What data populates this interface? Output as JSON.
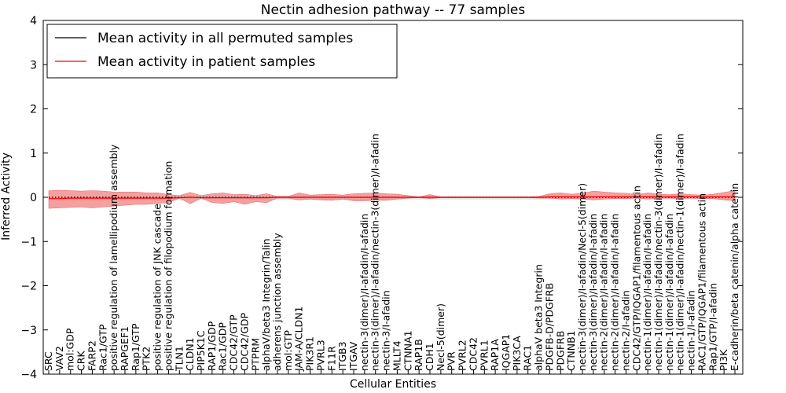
{
  "chart_data": {
    "type": "line",
    "title": "Nectin adhesion pathway -- 77 samples",
    "xlabel": "Cellular Entities",
    "ylabel": "Inferred Activity",
    "ylim": [
      -4,
      4
    ],
    "yticks": [
      -4,
      -3,
      -2,
      -1,
      0,
      1,
      2,
      3,
      4
    ],
    "ytick_labels": [
      "−4",
      "−3",
      "−2",
      "−1",
      "0",
      "1",
      "2",
      "3",
      "4"
    ],
    "grid": false,
    "legend_position": "top-left",
    "categories": [
      "SRC",
      "VAV2",
      "mol:GDP",
      "CRK",
      "FARP2",
      "Rac1/GTP",
      "positive regulation of lamellipodium assembly",
      "RAPGEF1",
      "Rap1/GTP",
      "PTK2",
      "positive regulation of JNK cascade",
      "positive regulation of filopodium formation",
      "TLN1",
      "CLDN1",
      "PIP5K1C",
      "RAP1/GDP",
      "Rac1/GDP",
      "CDC42/GTP",
      "CDC42/GDP",
      "PTPRM",
      "alphaV/beta3 Integrin/Talin",
      "adherens junction assembly",
      "mol:GTP",
      "JAM-A/CLDN1",
      "PIK3R1",
      "PVRL3",
      "F11R",
      "ITGB3",
      "ITGAV",
      "nectin-3(dimer)/I-afadin/I-afadin",
      "nectin-3(dimer)/I-afadin/nectin-3(dimer)/I-afadin",
      "nectin-3/I-afadin",
      "MLLT4",
      "CTNNA1",
      "RAP1B",
      "CDH1",
      "Necl-5(dimer)",
      "PVR",
      "PVRL2",
      "CDC42",
      "PVRL1",
      "RAP1A",
      "IQGAP1",
      "PIK3CA",
      "RAC1",
      "alphaV beta3 Integrin",
      "PDGFB-D/PDGFRB",
      "PDGFRB",
      "CTNNB1",
      "nectin-3(dimer)/I-afadin/Necl-5(dimer)",
      "nectin-3(dimer)/I-afadin/I-afadin",
      "nectin-2(dimer)/I-afadin/I-afadin",
      "nectin-2(dimer)/I-afadin/I-afadin",
      "nectin-2/I-afadin",
      "CDC42/GTP/IQGAP1/filamentous actin",
      "nectin-1(dimer)/I-afadin/I-afadin",
      "nectin-1(dimer)/I-afadin/nectin-3(dimer)/I-afadin",
      "nectin-1(dimer)/I-afadin/I-afadin",
      "nectin-1(dimer)/I-afadin/nectin-1(dimer)/I-afadin",
      "nectin-1/I-afadin",
      "RAC1/GTP/IQGAP1/filamentous actin",
      "Rap1/GTP/I-afadin",
      "PI3K",
      "E-cadherin/beta catenin/alpha catenin"
    ],
    "series": [
      {
        "name": "Mean activity in all permuted samples",
        "color": "#000000",
        "style": "dotted",
        "values": [
          0,
          0,
          0,
          0,
          0,
          0,
          0,
          0,
          0,
          0,
          0,
          0,
          0,
          0,
          0,
          0,
          0,
          0,
          0,
          0,
          0,
          0,
          0,
          0,
          0,
          0,
          0,
          0,
          0,
          0,
          0,
          0,
          0,
          0,
          0,
          0,
          0,
          0,
          0,
          0,
          0,
          0,
          0,
          0,
          0,
          0,
          0,
          0,
          0,
          0,
          0,
          0,
          0,
          0,
          0,
          0,
          0,
          0,
          0,
          0,
          0,
          0,
          0,
          0
        ],
        "band_upper": [
          0.02,
          0.02,
          0.02,
          0.02,
          0.02,
          0.02,
          0.02,
          0.02,
          0.02,
          0.02,
          0.02,
          0.02,
          0.02,
          0.02,
          0.02,
          0.02,
          0.02,
          0.02,
          0.02,
          0.02,
          0.02,
          0.03,
          0.03,
          0.03,
          0.03,
          0.03,
          0.03,
          0.03,
          0.03,
          0.03,
          0.03,
          0.03,
          0.02,
          0.02,
          0.02,
          0.02,
          0.02,
          0.02,
          0.02,
          0.02,
          0.02,
          0.02,
          0.02,
          0.02,
          0.02,
          0.02,
          0.02,
          0.02,
          0.02,
          0.02,
          0.02,
          0.02,
          0.02,
          0.02,
          0.02,
          0.02,
          0.02,
          0.02,
          0.02,
          0.02,
          0.02,
          0.02,
          0.02,
          0.02
        ],
        "band_lower": [
          -0.05,
          -0.05,
          -0.05,
          -0.05,
          -0.05,
          -0.05,
          -0.05,
          -0.05,
          -0.05,
          -0.05,
          -0.05,
          -0.05,
          -0.05,
          -0.05,
          -0.05,
          -0.05,
          -0.05,
          -0.05,
          -0.05,
          -0.05,
          -0.05,
          -0.06,
          -0.06,
          -0.06,
          -0.06,
          -0.06,
          -0.06,
          -0.06,
          -0.06,
          -0.06,
          -0.06,
          -0.06,
          -0.05,
          -0.05,
          -0.05,
          -0.05,
          -0.05,
          -0.05,
          -0.05,
          -0.05,
          -0.05,
          -0.05,
          -0.05,
          -0.05,
          -0.05,
          -0.05,
          -0.05,
          -0.05,
          -0.05,
          -0.05,
          -0.05,
          -0.05,
          -0.05,
          -0.05,
          -0.05,
          -0.05,
          -0.05,
          -0.05,
          -0.05,
          -0.05,
          -0.05,
          -0.05,
          -0.05,
          -0.05
        ]
      },
      {
        "name": "Mean activity in patient samples",
        "color": "#ff0000",
        "band_color": "#f08080",
        "values": [
          -0.03,
          -0.03,
          -0.02,
          -0.02,
          -0.02,
          -0.02,
          -0.02,
          -0.02,
          -0.02,
          -0.02,
          -0.02,
          -0.02,
          -0.01,
          0,
          -0.01,
          -0.01,
          -0.01,
          -0.01,
          -0.01,
          -0.01,
          -0.01,
          0,
          0,
          0,
          0,
          0,
          0,
          0,
          0,
          0,
          0,
          0,
          0,
          0,
          0,
          0,
          0,
          0,
          0,
          0,
          0,
          0,
          0,
          0,
          0,
          0,
          0.01,
          0.01,
          0.01,
          0.01,
          0.01,
          0.01,
          0.01,
          0.01,
          0.01,
          0.01,
          0.01,
          0.01,
          0.01,
          0.01,
          0.01,
          0.01,
          0.01,
          0.01
        ],
        "band_upper": [
          0.15,
          0.16,
          0.15,
          0.14,
          0.15,
          0.14,
          0.12,
          0.12,
          0.12,
          0.1,
          0.1,
          0.06,
          0.04,
          0.11,
          0.04,
          0.08,
          0.1,
          0.06,
          0.07,
          0.04,
          0.08,
          0.02,
          0.02,
          0.1,
          0.05,
          0.06,
          0.07,
          0.05,
          0.08,
          0.09,
          0.1,
          0.08,
          0.07,
          0.04,
          0.01,
          0.06,
          0.01,
          0.01,
          0.01,
          0.01,
          0.01,
          0.01,
          0.01,
          0.01,
          0.01,
          0.02,
          0.08,
          0.1,
          0.07,
          0.09,
          0.14,
          0.12,
          0.1,
          0.09,
          0.06,
          0.1,
          0.07,
          0.06,
          0.08,
          0.06,
          0.05,
          0.07,
          0.11,
          0.15
        ],
        "band_lower": [
          -0.25,
          -0.24,
          -0.23,
          -0.22,
          -0.24,
          -0.22,
          -0.2,
          -0.18,
          -0.16,
          -0.16,
          -0.14,
          -0.12,
          -0.02,
          -0.15,
          -0.02,
          -0.12,
          -0.14,
          -0.1,
          -0.16,
          -0.1,
          -0.12,
          -0.02,
          -0.02,
          -0.06,
          -0.04,
          -0.06,
          -0.07,
          -0.04,
          -0.08,
          -0.08,
          -0.07,
          -0.07,
          -0.04,
          -0.02,
          -0.01,
          -0.03,
          -0.01,
          -0.01,
          -0.01,
          -0.01,
          -0.01,
          -0.01,
          -0.01,
          -0.01,
          -0.01,
          -0.02,
          -0.02,
          -0.04,
          -0.03,
          -0.04,
          -0.06,
          -0.04,
          -0.03,
          -0.03,
          -0.02,
          -0.04,
          -0.02,
          -0.02,
          -0.03,
          -0.02,
          -0.03,
          -0.03,
          -0.06,
          -0.08
        ]
      }
    ]
  }
}
